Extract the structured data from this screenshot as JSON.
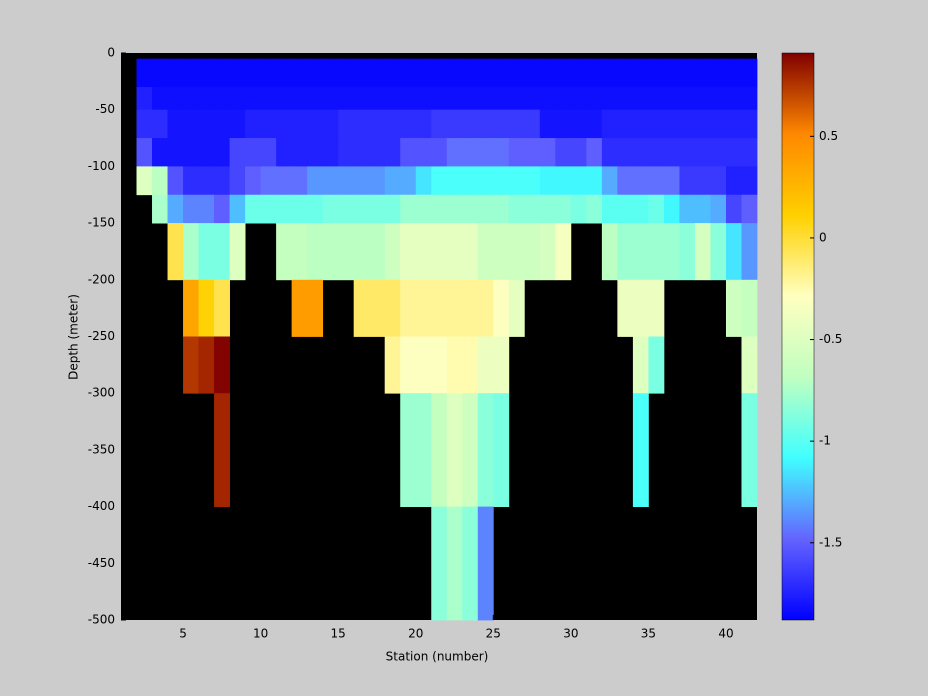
{
  "chart_data": {
    "type": "heatmap",
    "xlabel": "Station (number)",
    "ylabel": "Depth (meter)",
    "xlim": [
      1,
      42
    ],
    "ylim": [
      -500,
      0
    ],
    "xticks": [
      5,
      10,
      15,
      20,
      25,
      30,
      35,
      40
    ],
    "yticks": [
      0,
      -50,
      -100,
      -150,
      -200,
      -250,
      -300,
      -350,
      -400,
      -450,
      -500
    ],
    "x_edges": [
      2,
      3,
      4,
      5,
      6,
      7,
      8,
      9,
      10,
      11,
      12,
      13,
      14,
      15,
      16,
      17,
      18,
      19,
      20,
      21,
      22,
      23,
      24,
      25,
      26,
      27,
      28,
      29,
      30,
      31,
      32,
      33,
      34,
      35,
      36,
      37,
      38,
      39,
      40,
      41,
      42
    ],
    "y_edges": [
      -5,
      -30,
      -50,
      -75,
      -100,
      -125,
      -150,
      -200,
      -250,
      -300,
      -400,
      -500
    ],
    "values": [
      [
        -1.85,
        -1.85,
        -1.85,
        -1.85,
        -1.85,
        -1.85,
        -1.85,
        -1.85,
        -1.85,
        -1.85,
        -1.85,
        -1.85,
        -1.85,
        -1.85,
        -1.85,
        -1.85,
        -1.85,
        -1.85,
        -1.85,
        -1.85,
        -1.85,
        -1.85,
        -1.85,
        -1.85,
        -1.85,
        -1.85,
        -1.85,
        -1.85,
        -1.85,
        -1.85,
        -1.85,
        -1.85,
        -1.85,
        -1.85,
        -1.85,
        -1.85,
        -1.85,
        -1.85,
        -1.85,
        -1.85
      ],
      [
        -1.75,
        -1.82,
        -1.82,
        -1.82,
        -1.82,
        -1.82,
        -1.82,
        -1.82,
        -1.82,
        -1.82,
        -1.82,
        -1.82,
        -1.82,
        -1.82,
        -1.82,
        -1.82,
        -1.82,
        -1.82,
        -1.82,
        -1.82,
        -1.82,
        -1.82,
        -1.82,
        -1.82,
        -1.82,
        -1.82,
        -1.82,
        -1.82,
        -1.82,
        -1.82,
        -1.82,
        -1.82,
        -1.82,
        -1.82,
        -1.82,
        -1.82,
        -1.82,
        -1.82,
        -1.82,
        -1.82
      ],
      [
        -1.7,
        -1.7,
        -1.8,
        -1.8,
        -1.8,
        -1.8,
        -1.8,
        -1.75,
        -1.75,
        -1.75,
        -1.75,
        -1.75,
        -1.75,
        -1.7,
        -1.7,
        -1.7,
        -1.7,
        -1.7,
        -1.7,
        -1.65,
        -1.65,
        -1.65,
        -1.65,
        -1.65,
        -1.65,
        -1.65,
        -1.8,
        -1.8,
        -1.8,
        -1.8,
        -1.75,
        -1.75,
        -1.75,
        -1.75,
        -1.75,
        -1.75,
        -1.75,
        -1.75,
        -1.75,
        -1.75
      ],
      [
        -1.55,
        -1.8,
        -1.8,
        -1.8,
        -1.8,
        -1.8,
        -1.6,
        -1.6,
        -1.6,
        -1.75,
        -1.75,
        -1.75,
        -1.75,
        -1.7,
        -1.7,
        -1.7,
        -1.7,
        -1.55,
        -1.55,
        -1.55,
        -1.45,
        -1.45,
        -1.45,
        -1.45,
        -1.5,
        -1.5,
        -1.5,
        -1.6,
        -1.6,
        -1.5,
        -1.7,
        -1.7,
        -1.7,
        -1.7,
        -1.7,
        -1.7,
        -1.7,
        -1.7,
        -1.7,
        -1.7
      ],
      [
        -0.5,
        -0.7,
        -1.55,
        -1.7,
        -1.7,
        -1.7,
        -1.6,
        -1.5,
        -1.45,
        -1.45,
        -1.45,
        -1.35,
        -1.35,
        -1.35,
        -1.35,
        -1.35,
        -1.3,
        -1.3,
        -1.15,
        -1.05,
        -1.05,
        -1.05,
        -1.05,
        -1.05,
        -1.05,
        -1.05,
        -1.1,
        -1.1,
        -1.1,
        -1.1,
        -1.3,
        -1.45,
        -1.45,
        -1.45,
        -1.45,
        -1.65,
        -1.65,
        -1.65,
        -1.75,
        -1.75
      ],
      [
        null,
        -0.75,
        -1.3,
        -1.4,
        -1.4,
        -1.5,
        -1.25,
        -0.95,
        -0.95,
        -0.95,
        -0.95,
        -0.95,
        -0.9,
        -0.9,
        -0.9,
        -0.9,
        -0.9,
        -0.8,
        -0.8,
        -0.8,
        -0.8,
        -0.8,
        -0.8,
        -0.8,
        -0.85,
        -0.85,
        -0.85,
        -0.85,
        -0.9,
        -0.85,
        -1.0,
        -1.0,
        -1.0,
        -0.95,
        -1.1,
        -1.25,
        -1.25,
        -1.3,
        -1.6,
        -1.5
      ],
      [
        null,
        null,
        -0.05,
        -0.75,
        -0.9,
        -0.9,
        -0.5,
        null,
        null,
        -0.65,
        -0.65,
        -0.7,
        -0.7,
        -0.7,
        -0.7,
        -0.7,
        -0.6,
        -0.45,
        -0.45,
        -0.45,
        -0.45,
        -0.45,
        -0.6,
        -0.6,
        -0.6,
        -0.6,
        -0.55,
        -0.35,
        null,
        null,
        -0.7,
        -0.8,
        -0.8,
        -0.8,
        -0.8,
        -0.85,
        -0.55,
        -0.85,
        -1.15,
        -1.35
      ],
      [
        null,
        null,
        null,
        0.35,
        0.1,
        -0.05,
        null,
        null,
        null,
        null,
        0.4,
        0.4,
        null,
        null,
        -0.1,
        -0.1,
        -0.1,
        -0.2,
        -0.2,
        -0.2,
        -0.2,
        -0.2,
        -0.2,
        -0.3,
        -0.45,
        null,
        null,
        null,
        null,
        null,
        null,
        -0.4,
        -0.4,
        -0.4,
        null,
        null,
        null,
        null,
        -0.6,
        -0.65
      ],
      [
        null,
        null,
        null,
        0.75,
        0.8,
        0.9,
        null,
        null,
        null,
        null,
        null,
        null,
        null,
        null,
        null,
        null,
        -0.2,
        -0.3,
        -0.3,
        -0.3,
        -0.25,
        -0.25,
        -0.4,
        -0.4,
        null,
        null,
        null,
        null,
        null,
        null,
        null,
        null,
        -0.5,
        -0.9,
        null,
        null,
        null,
        null,
        null,
        -0.5
      ],
      [
        null,
        null,
        null,
        null,
        null,
        0.8,
        null,
        null,
        null,
        null,
        null,
        null,
        null,
        null,
        null,
        null,
        null,
        -0.8,
        -0.8,
        -0.65,
        -0.5,
        -0.6,
        -0.85,
        -0.9,
        null,
        null,
        null,
        null,
        null,
        null,
        null,
        null,
        -1.05,
        null,
        null,
        null,
        null,
        null,
        null,
        -0.9
      ],
      [
        null,
        null,
        null,
        null,
        null,
        null,
        null,
        null,
        null,
        null,
        null,
        null,
        null,
        null,
        null,
        null,
        null,
        null,
        null,
        -0.85,
        -0.75,
        -0.85,
        -1.4,
        null,
        null,
        null,
        null,
        null,
        null,
        null,
        null,
        null,
        null,
        null,
        null,
        null,
        null,
        null,
        null,
        null
      ]
    ],
    "clim": [
      -1.88,
      0.91
    ],
    "cticks": [
      -1.5,
      -1,
      -0.5,
      0,
      0.5
    ],
    "colormap": [
      "#0000ff",
      "#6464ff",
      "#40ffff",
      "#c0ffc0",
      "#ffffc0",
      "#ffd000",
      "#ff8800",
      "#800000"
    ],
    "background": "#000000"
  }
}
